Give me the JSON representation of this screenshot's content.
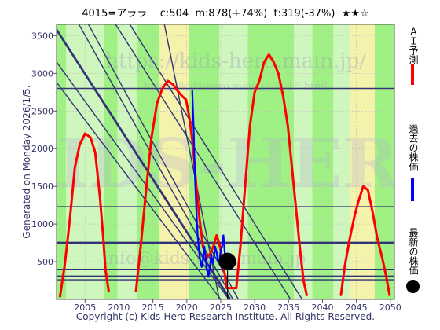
{
  "title": {
    "code_name": "4015=アララ",
    "current": "c:504",
    "max": "m:878(+74%)",
    "target": "t:319(-37%)",
    "stars": "★★☆"
  },
  "side_note": "Generated on Monday 2026/1/5.",
  "copyright": "Copyright (c) Kids-Hero Research Institute. All Rights Reserved.",
  "watermarks": {
    "url_top": "https://kids-hero.main.jp/",
    "url_mid": "https://kids-hero.main.jp/4015.html",
    "logo_text": "KIDS-HERO",
    "email": "info@kids-hero.main.jp"
  },
  "legend": {
    "ai_forecast": "ＡＩ予測",
    "past_price": "過去の株価",
    "latest_price": "最新の株価"
  },
  "colors": {
    "ai_forecast": "#ff0000",
    "past_price": "#0000ff",
    "latest_price": "#000000",
    "green_band": "#90ee70",
    "pale_green_band": "#c8f5b4",
    "yellow_band": "#f5f0a0",
    "trend_lines": "#333377",
    "grid": "#c0c0c0"
  },
  "chart_data": {
    "type": "line",
    "xlabel": "",
    "ylabel": "",
    "x_ticks": [
      2005,
      2010,
      2015,
      2020,
      2025,
      2030,
      2035,
      2040,
      2045,
      2050
    ],
    "y_ticks": [
      500,
      1000,
      1500,
      2000,
      2500,
      3000,
      3500
    ],
    "xlim": [
      2000.8,
      2050.6
    ],
    "ylim": [
      0,
      3650
    ],
    "grid": true,
    "legend_position": "right-outside",
    "series": [
      {
        "name": "ＡＩ予測",
        "color": "#ff0000",
        "x": [
          2001.3,
          2002.0,
          2002.8,
          2003.5,
          2004.2,
          2005.0,
          2005.8,
          2006.5,
          2007.2,
          2007.7,
          2008.0,
          2008.5,
          2012.5,
          2013.2,
          2014.0,
          2014.8,
          2015.6,
          2016.4,
          2017.2,
          2018.0,
          2018.8,
          2019.3,
          2019.9,
          2020.4,
          2020.9,
          2021.4,
          2021.9,
          2022.4,
          2022.9,
          2023.4,
          2023.9,
          2024.4,
          2024.9,
          2025.4,
          2025.9,
          2027.3,
          2027.9,
          2028.6,
          2029.3,
          2030.0,
          2030.7,
          2031.4,
          2032.1,
          2032.8,
          2033.5,
          2034.2,
          2034.9,
          2035.5,
          2036.1,
          2036.7,
          2037.2,
          2037.7,
          2042.7,
          2043.3,
          2044.0,
          2044.7,
          2045.3,
          2046.0,
          2046.7,
          2047.4,
          2048.1,
          2048.8,
          2049.4,
          2049.9
        ],
        "y": [
          30,
          450,
          1100,
          1750,
          2050,
          2200,
          2150,
          1950,
          1350,
          800,
          400,
          100,
          100,
          700,
          1450,
          2150,
          2600,
          2800,
          2900,
          2850,
          2750,
          2700,
          2650,
          2400,
          2050,
          1500,
          1050,
          700,
          550,
          600,
          700,
          850,
          700,
          450,
          150,
          150,
          700,
          1500,
          2300,
          2750,
          2900,
          3150,
          3250,
          3150,
          3000,
          2700,
          2300,
          1750,
          1200,
          650,
          250,
          50,
          50,
          450,
          800,
          1100,
          1300,
          1500,
          1450,
          1150,
          800,
          550,
          300,
          50
        ]
      },
      {
        "name": "過去の株価",
        "color": "#0000ff",
        "x": [
          2020.8,
          2021.0,
          2021.2,
          2021.4,
          2021.6,
          2021.8,
          2022.0,
          2022.2,
          2022.4,
          2022.6,
          2022.8,
          2023.0,
          2023.2,
          2023.4,
          2023.6,
          2023.8,
          2024.0,
          2024.2,
          2024.4,
          2024.6,
          2024.8,
          2025.0,
          2025.2,
          2025.4,
          2025.6,
          2025.8,
          2026.0
        ],
        "y": [
          2780,
          2300,
          1650,
          1200,
          850,
          650,
          500,
          430,
          550,
          700,
          520,
          380,
          300,
          420,
          600,
          480,
          560,
          700,
          620,
          500,
          520,
          650,
          700,
          850,
          620,
          540,
          504
        ]
      }
    ],
    "latest": {
      "x": 2026.0,
      "y": 504
    },
    "trend_lines": [
      {
        "x1": 2011.6,
        "y1": 3650,
        "x2": 2037.0,
        "y2": 0
      },
      {
        "x1": 2009.5,
        "y1": 3650,
        "x2": 2035.3,
        "y2": 0
      },
      {
        "x1": 2005.5,
        "y1": 3650,
        "x2": 2027.6,
        "y2": 0
      },
      {
        "x1": 2004.1,
        "y1": 3650,
        "x2": 2026.8,
        "y2": 0
      },
      {
        "x1": 2000.8,
        "y1": 3580,
        "x2": 2026.4,
        "y2": 0
      },
      {
        "x1": 2016.7,
        "y1": 3650,
        "x2": 2024.8,
        "y2": 0
      },
      {
        "x1": 2000.8,
        "y1": 2880,
        "x2": 2025.0,
        "y2": 0
      },
      {
        "x1": 2000.8,
        "y1": 3150,
        "x2": 2026.2,
        "y2": 0
      }
    ],
    "horizontal_lines": [
      2800,
      1230,
      750,
      400,
      310,
      260
    ],
    "bands": [
      {
        "from": 2000.8,
        "to": 2002.2,
        "shade": "green"
      },
      {
        "from": 2002.2,
        "to": 2007.8,
        "shade": "pale_green"
      },
      {
        "from": 2007.8,
        "to": 2009.8,
        "shade": "green"
      },
      {
        "from": 2009.8,
        "to": 2012.6,
        "shade": "pale_green"
      },
      {
        "from": 2012.6,
        "to": 2016.0,
        "shade": "green"
      },
      {
        "from": 2016.0,
        "to": 2020.3,
        "shade": "yellow"
      },
      {
        "from": 2020.3,
        "to": 2024.8,
        "shade": "green"
      },
      {
        "from": 2024.8,
        "to": 2029.0,
        "shade": "pale_green"
      },
      {
        "from": 2029.0,
        "to": 2035.8,
        "shade": "green"
      },
      {
        "from": 2035.8,
        "to": 2038.5,
        "shade": "pale_green"
      },
      {
        "from": 2038.5,
        "to": 2041.6,
        "shade": "green"
      },
      {
        "from": 2041.6,
        "to": 2044.0,
        "shade": "pale_green"
      },
      {
        "from": 2044.0,
        "to": 2047.7,
        "shade": "yellow"
      },
      {
        "from": 2047.7,
        "to": 2050.6,
        "shade": "green"
      }
    ]
  }
}
